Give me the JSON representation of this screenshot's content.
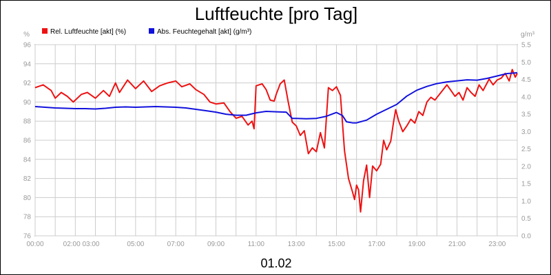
{
  "chart_data": {
    "type": "line",
    "title": "Luftfeuchte [pro Tag]",
    "date_label": "01.02",
    "y_left_unit": "%",
    "y_right_unit": "g/m³",
    "y_left_range": [
      76,
      96
    ],
    "y_left_ticks": [
      76,
      78,
      80,
      82,
      84,
      86,
      88,
      90,
      92,
      94,
      96
    ],
    "y_right_range": [
      0.0,
      5.5
    ],
    "y_right_ticks": [
      "0.0",
      "0.5",
      "1.0",
      "1.5",
      "2.0",
      "2.5",
      "3.0",
      "3.5",
      "4.0",
      "4.5",
      "5.0",
      "5.5"
    ],
    "x_range_hours": [
      0,
      24
    ],
    "x_ticks": [
      {
        "h": 0,
        "label": "00:00"
      },
      {
        "h": 2.3,
        "label": "02:00 03:00"
      },
      {
        "h": 5,
        "label": "05:00"
      },
      {
        "h": 7,
        "label": "07:00"
      },
      {
        "h": 9,
        "label": "09:00"
      },
      {
        "h": 11,
        "label": "11:00"
      },
      {
        "h": 13,
        "label": "13:00"
      },
      {
        "h": 15,
        "label": "15:00"
      },
      {
        "h": 17,
        "label": "17:00"
      },
      {
        "h": 19,
        "label": "19:00"
      },
      {
        "h": 21,
        "label": "21:00"
      },
      {
        "h": 23,
        "label": "23:00"
      }
    ],
    "grid": true,
    "legend_position": "top-left",
    "series": [
      {
        "name": "Rel. Luftfeuchte [akt] (%)",
        "color": "#ee1111",
        "axis": "left",
        "points": [
          [
            0,
            91.5
          ],
          [
            0.4,
            91.8
          ],
          [
            0.8,
            91.2
          ],
          [
            1.0,
            90.4
          ],
          [
            1.3,
            91.0
          ],
          [
            1.6,
            90.6
          ],
          [
            1.9,
            90.0
          ],
          [
            2.3,
            90.8
          ],
          [
            2.6,
            91.0
          ],
          [
            3.0,
            90.4
          ],
          [
            3.4,
            91.2
          ],
          [
            3.7,
            90.6
          ],
          [
            4.0,
            92.0
          ],
          [
            4.2,
            91.0
          ],
          [
            4.6,
            92.3
          ],
          [
            5.0,
            91.4
          ],
          [
            5.4,
            92.2
          ],
          [
            5.8,
            91.1
          ],
          [
            6.2,
            91.7
          ],
          [
            6.6,
            92.0
          ],
          [
            7.0,
            92.2
          ],
          [
            7.3,
            91.6
          ],
          [
            7.7,
            91.9
          ],
          [
            8.0,
            91.3
          ],
          [
            8.4,
            90.8
          ],
          [
            8.7,
            90.0
          ],
          [
            9.0,
            89.8
          ],
          [
            9.4,
            89.9
          ],
          [
            9.7,
            89.0
          ],
          [
            10.0,
            88.3
          ],
          [
            10.3,
            88.5
          ],
          [
            10.6,
            87.6
          ],
          [
            10.8,
            88.0
          ],
          [
            10.9,
            87.2
          ],
          [
            11.0,
            91.7
          ],
          [
            11.3,
            91.9
          ],
          [
            11.5,
            91.3
          ],
          [
            11.7,
            90.2
          ],
          [
            11.9,
            90.1
          ],
          [
            12.0,
            90.8
          ],
          [
            12.2,
            91.9
          ],
          [
            12.4,
            92.3
          ],
          [
            12.6,
            90.0
          ],
          [
            12.8,
            87.9
          ],
          [
            13.0,
            87.5
          ],
          [
            13.2,
            86.5
          ],
          [
            13.4,
            87.0
          ],
          [
            13.6,
            84.6
          ],
          [
            13.8,
            85.2
          ],
          [
            14.0,
            84.8
          ],
          [
            14.2,
            86.8
          ],
          [
            14.4,
            85.2
          ],
          [
            14.6,
            91.5
          ],
          [
            14.8,
            91.2
          ],
          [
            15.0,
            91.6
          ],
          [
            15.2,
            90.7
          ],
          [
            15.4,
            84.9
          ],
          [
            15.6,
            82.0
          ],
          [
            15.8,
            80.6
          ],
          [
            15.9,
            79.8
          ],
          [
            16.0,
            81.3
          ],
          [
            16.1,
            80.8
          ],
          [
            16.2,
            78.5
          ],
          [
            16.35,
            81.8
          ],
          [
            16.5,
            83.4
          ],
          [
            16.65,
            80.0
          ],
          [
            16.8,
            83.3
          ],
          [
            17.0,
            82.8
          ],
          [
            17.2,
            83.5
          ],
          [
            17.35,
            86.0
          ],
          [
            17.5,
            85.0
          ],
          [
            17.7,
            85.9
          ],
          [
            17.85,
            88.0
          ],
          [
            17.95,
            89.2
          ],
          [
            18.1,
            88.0
          ],
          [
            18.3,
            86.9
          ],
          [
            18.5,
            87.5
          ],
          [
            18.7,
            88.2
          ],
          [
            18.9,
            87.8
          ],
          [
            19.1,
            89.0
          ],
          [
            19.3,
            88.6
          ],
          [
            19.5,
            90.0
          ],
          [
            19.7,
            90.5
          ],
          [
            19.9,
            90.2
          ],
          [
            20.2,
            91.0
          ],
          [
            20.5,
            91.8
          ],
          [
            20.7,
            91.2
          ],
          [
            20.9,
            90.6
          ],
          [
            21.1,
            91.0
          ],
          [
            21.3,
            90.2
          ],
          [
            21.5,
            91.5
          ],
          [
            21.7,
            91.0
          ],
          [
            21.9,
            90.6
          ],
          [
            22.1,
            91.8
          ],
          [
            22.3,
            91.2
          ],
          [
            22.6,
            92.4
          ],
          [
            22.8,
            91.8
          ],
          [
            23.0,
            92.3
          ],
          [
            23.2,
            92.5
          ],
          [
            23.4,
            93.0
          ],
          [
            23.6,
            92.2
          ],
          [
            23.75,
            93.4
          ],
          [
            23.9,
            92.6
          ],
          [
            24.0,
            93.0
          ]
        ]
      },
      {
        "name": "Abs. Feuchtegehalt [akt] (g/m³)",
        "color": "#1111dd",
        "axis": "right",
        "points": [
          [
            0,
            3.72
          ],
          [
            0.5,
            3.7
          ],
          [
            1.0,
            3.68
          ],
          [
            1.5,
            3.67
          ],
          [
            2.0,
            3.66
          ],
          [
            2.5,
            3.66
          ],
          [
            3.0,
            3.65
          ],
          [
            3.5,
            3.67
          ],
          [
            4.0,
            3.7
          ],
          [
            4.5,
            3.71
          ],
          [
            5.0,
            3.7
          ],
          [
            5.5,
            3.71
          ],
          [
            6.0,
            3.72
          ],
          [
            6.5,
            3.71
          ],
          [
            7.0,
            3.7
          ],
          [
            7.5,
            3.68
          ],
          [
            8.0,
            3.64
          ],
          [
            8.5,
            3.6
          ],
          [
            9.0,
            3.56
          ],
          [
            9.5,
            3.5
          ],
          [
            10.0,
            3.47
          ],
          [
            10.5,
            3.47
          ],
          [
            11.0,
            3.54
          ],
          [
            11.5,
            3.58
          ],
          [
            12.0,
            3.57
          ],
          [
            12.5,
            3.56
          ],
          [
            12.8,
            3.38
          ],
          [
            13.0,
            3.38
          ],
          [
            13.5,
            3.37
          ],
          [
            14.0,
            3.38
          ],
          [
            14.5,
            3.44
          ],
          [
            15.0,
            3.55
          ],
          [
            15.3,
            3.46
          ],
          [
            15.5,
            3.28
          ],
          [
            15.8,
            3.25
          ],
          [
            16.0,
            3.25
          ],
          [
            16.5,
            3.33
          ],
          [
            17.0,
            3.5
          ],
          [
            17.5,
            3.64
          ],
          [
            18.0,
            3.78
          ],
          [
            18.5,
            4.02
          ],
          [
            19.0,
            4.19
          ],
          [
            19.5,
            4.3
          ],
          [
            20.0,
            4.38
          ],
          [
            20.5,
            4.43
          ],
          [
            21.0,
            4.46
          ],
          [
            21.5,
            4.49
          ],
          [
            22.0,
            4.48
          ],
          [
            22.5,
            4.53
          ],
          [
            23.0,
            4.6
          ],
          [
            23.5,
            4.67
          ],
          [
            24.0,
            4.69
          ]
        ]
      }
    ]
  }
}
